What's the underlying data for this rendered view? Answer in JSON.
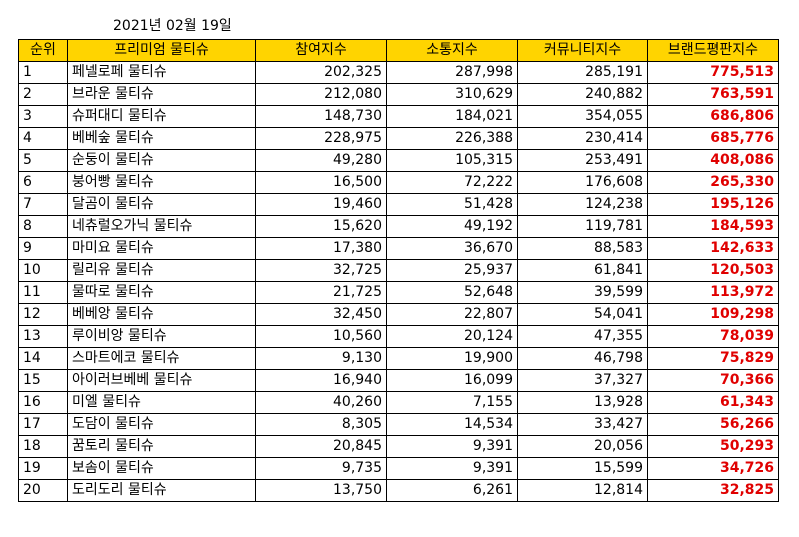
{
  "date": "2021년 02월 19일",
  "headers": [
    "순위",
    "프리미엄 물티슈",
    "참여지수",
    "소통지수",
    "커뮤니티지수",
    "브랜드평판지수"
  ],
  "rows": [
    {
      "rank": "1",
      "name": "페넬로페 물티슈",
      "participation": "202,325",
      "communication": "287,998",
      "community": "285,191",
      "brand": "775,513"
    },
    {
      "rank": "2",
      "name": "브라운 물티슈",
      "participation": "212,080",
      "communication": "310,629",
      "community": "240,882",
      "brand": "763,591"
    },
    {
      "rank": "3",
      "name": "슈퍼대디 물티슈",
      "participation": "148,730",
      "communication": "184,021",
      "community": "354,055",
      "brand": "686,806"
    },
    {
      "rank": "4",
      "name": "베베숲 물티슈",
      "participation": "228,975",
      "communication": "226,388",
      "community": "230,414",
      "brand": "685,776"
    },
    {
      "rank": "5",
      "name": "순둥이 물티슈",
      "participation": "49,280",
      "communication": "105,315",
      "community": "253,491",
      "brand": "408,086"
    },
    {
      "rank": "6",
      "name": "붕어빵 물티슈",
      "participation": "16,500",
      "communication": "72,222",
      "community": "176,608",
      "brand": "265,330"
    },
    {
      "rank": "7",
      "name": "달곰이 물티슈",
      "participation": "19,460",
      "communication": "51,428",
      "community": "124,238",
      "brand": "195,126"
    },
    {
      "rank": "8",
      "name": "네츄럴오가닉 물티슈",
      "participation": "15,620",
      "communication": "49,192",
      "community": "119,781",
      "brand": "184,593"
    },
    {
      "rank": "9",
      "name": "마미요 물티슈",
      "participation": "17,380",
      "communication": "36,670",
      "community": "88,583",
      "brand": "142,633"
    },
    {
      "rank": "10",
      "name": "릴리유 물티슈",
      "participation": "32,725",
      "communication": "25,937",
      "community": "61,841",
      "brand": "120,503"
    },
    {
      "rank": "11",
      "name": "물따로 물티슈",
      "participation": "21,725",
      "communication": "52,648",
      "community": "39,599",
      "brand": "113,972"
    },
    {
      "rank": "12",
      "name": "베베앙 물티슈",
      "participation": "32,450",
      "communication": "22,807",
      "community": "54,041",
      "brand": "109,298"
    },
    {
      "rank": "13",
      "name": "루이비앙 물티슈",
      "participation": "10,560",
      "communication": "20,124",
      "community": "47,355",
      "brand": "78,039"
    },
    {
      "rank": "14",
      "name": "스마트에코 물티슈",
      "participation": "9,130",
      "communication": "19,900",
      "community": "46,798",
      "brand": "75,829"
    },
    {
      "rank": "15",
      "name": "아이러브베베 물티슈",
      "participation": "16,940",
      "communication": "16,099",
      "community": "37,327",
      "brand": "70,366"
    },
    {
      "rank": "16",
      "name": "미엘 물티슈",
      "participation": "40,260",
      "communication": "7,155",
      "community": "13,928",
      "brand": "61,343"
    },
    {
      "rank": "17",
      "name": "도담이 물티슈",
      "participation": "8,305",
      "communication": "14,534",
      "community": "33,427",
      "brand": "56,266"
    },
    {
      "rank": "18",
      "name": "꿈토리 물티슈",
      "participation": "20,845",
      "communication": "9,391",
      "community": "20,056",
      "brand": "50,293"
    },
    {
      "rank": "19",
      "name": "보솜이 물티슈",
      "participation": "9,735",
      "communication": "9,391",
      "community": "15,599",
      "brand": "34,726"
    },
    {
      "rank": "20",
      "name": "도리도리 물티슈",
      "participation": "13,750",
      "communication": "6,261",
      "community": "12,814",
      "brand": "32,825"
    }
  ],
  "colors": {
    "header_background": "#ffd400",
    "brand_value": "#e00000"
  }
}
